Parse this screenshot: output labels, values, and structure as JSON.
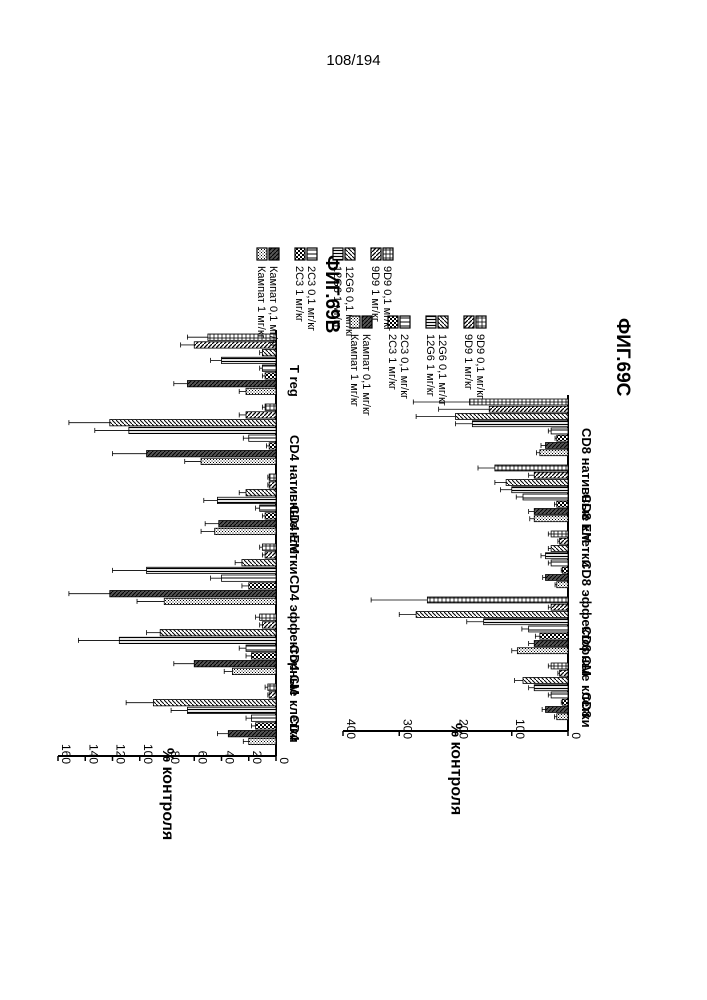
{
  "page_number": "108/194",
  "chart_data": [
    {
      "type": "bar",
      "figure_label": "ФИГ.69B",
      "ylabel": "% контроля",
      "ylim": [
        0,
        160
      ],
      "yticks": [
        "0",
        "20",
        "40",
        "60",
        "80",
        "100",
        "120",
        "140",
        "160"
      ],
      "categories": [
        "CD4",
        "CD4 CM",
        "CD4 эффекторные клетки",
        "CD4 EM",
        "CD4 нативные клетки",
        "T reg"
      ],
      "series": [
        {
          "name": "Кампат 1 мг/кг",
          "values": [
            20,
            32,
            82,
            45,
            55,
            22
          ]
        },
        {
          "name": "Кампат 0,1 мг/кг",
          "values": [
            35,
            60,
            122,
            42,
            95,
            65
          ]
        },
        {
          "name": "2C3 1 мг/кг",
          "values": [
            15,
            18,
            20,
            8,
            5,
            8
          ]
        },
        {
          "name": "2C3 0,1 мг/кг",
          "values": [
            18,
            22,
            40,
            12,
            20,
            10
          ]
        },
        {
          "name": "12G6 1 мг/кг",
          "values": [
            65,
            115,
            95,
            43,
            108,
            40
          ]
        },
        {
          "name": "12G6 0,1 мг/кг",
          "values": [
            90,
            85,
            25,
            22,
            122,
            10
          ]
        },
        {
          "name": "9D9 1 мг/кг",
          "values": [
            5,
            10,
            8,
            5,
            22,
            60
          ]
        },
        {
          "name": "9D9 0,1 мг/кг",
          "values": [
            6,
            12,
            10,
            5,
            8,
            50
          ]
        }
      ],
      "errors": [
        [
          4,
          6,
          20,
          10,
          12,
          5
        ],
        [
          8,
          15,
          30,
          10,
          25,
          10
        ],
        [
          3,
          4,
          5,
          2,
          2,
          2
        ],
        [
          4,
          5,
          8,
          3,
          4,
          2
        ],
        [
          12,
          30,
          25,
          10,
          25,
          8
        ],
        [
          20,
          10,
          5,
          5,
          30,
          2
        ],
        [
          1,
          2,
          2,
          1,
          5,
          10
        ],
        [
          2,
          3,
          2,
          1,
          2,
          15
        ]
      ],
      "legend": [
        "Кампат 1 мг/кг",
        "Кампат 0,1 мг/кг",
        "2C3 1 мг/кг",
        "2C3 0,1 мг/кг",
        "12G6 1 мг/кг",
        "12G6 0,1 мг/кг",
        "9D9 1 мг/кг",
        "9D9 0,1 мг/кг"
      ],
      "orientation": "rotated 90° clockwise"
    },
    {
      "type": "bar",
      "figure_label": "ФИГ.69C",
      "ylabel": "% контроля",
      "ylim": [
        0,
        400
      ],
      "yticks": [
        "0",
        "100",
        "200",
        "300",
        "400"
      ],
      "categories": [
        "CD8",
        "CD8 CM",
        "CD8 эффекторные клетки",
        "CD8 EM",
        "CD8 нативные клетки"
      ],
      "series": [
        {
          "name": "Кампат 1 мг/кг",
          "values": [
            20,
            90,
            20,
            60,
            50
          ]
        },
        {
          "name": "Кампат 0,1 мг/кг",
          "values": [
            40,
            60,
            40,
            60,
            40
          ]
        },
        {
          "name": "2C3 1 мг/кг",
          "values": [
            10,
            50,
            10,
            20,
            20
          ]
        },
        {
          "name": "2C3 0,1 мг/кг",
          "values": [
            30,
            70,
            30,
            80,
            30
          ]
        },
        {
          "name": "12G6 1 мг/кг",
          "values": [
            60,
            150,
            40,
            100,
            170
          ]
        },
        {
          "name": "12G6 0,1 мг/кг",
          "values": [
            80,
            270,
            30,
            110,
            200
          ]
        },
        {
          "name": "9D9 1 мг/кг",
          "values": [
            15,
            30,
            15,
            60,
            140
          ]
        },
        {
          "name": "9D9 0,1 мг/кг",
          "values": [
            30,
            250,
            30,
            130,
            175
          ]
        }
      ],
      "errors": [
        [
          4,
          10,
          3,
          8,
          6
        ],
        [
          6,
          10,
          5,
          10,
          8
        ],
        [
          2,
          8,
          2,
          4,
          3
        ],
        [
          5,
          12,
          5,
          12,
          5
        ],
        [
          10,
          30,
          8,
          20,
          30
        ],
        [
          15,
          30,
          5,
          20,
          70
        ],
        [
          3,
          5,
          3,
          10,
          90
        ],
        [
          5,
          100,
          5,
          30,
          100
        ]
      ],
      "legend": [
        "Кампат 1 мг/кг",
        "Кампат 0,1 мг/кг",
        "2C3 1 мг/кг",
        "2C3 0,1 мг/кг",
        "12G6 1 мг/кг",
        "12G6 0,1 мг/кг",
        "9D9 1 мг/кг",
        "9D9 0,1 мг/кг"
      ],
      "orientation": "rotated 90° clockwise"
    }
  ]
}
